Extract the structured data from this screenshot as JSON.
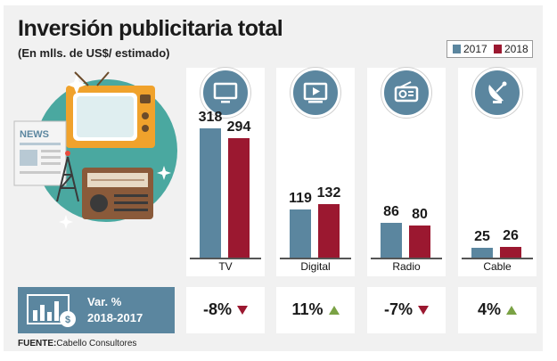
{
  "title": "Inversión publicitaria total",
  "subtitle": "(En mlls. de US$/ estimado)",
  "legend": [
    {
      "label": "2017",
      "color": "#5b869f"
    },
    {
      "label": "2018",
      "color": "#9b1830"
    }
  ],
  "chart_data": {
    "type": "bar",
    "title": "Inversión publicitaria total",
    "subtitle": "(En mlls. de US$/ estimado)",
    "categories": [
      "TV",
      "Digital",
      "Radio",
      "Cable"
    ],
    "series": [
      {
        "name": "2017",
        "values": [
          318,
          119,
          86,
          25
        ],
        "labels": [
          "318",
          "119",
          "86",
          "25"
        ]
      },
      {
        "name": "2018",
        "values": [
          294,
          132,
          80,
          26
        ],
        "labels": [
          "294",
          "132",
          "80",
          "26"
        ]
      }
    ],
    "ylim": [
      0,
      330
    ],
    "legend_position": "top-right",
    "grid": false
  },
  "variation": {
    "label_line1": "Var. %",
    "label_line2": "2018-2017",
    "items": [
      {
        "value": "-8%",
        "direction": "down"
      },
      {
        "value": "11%",
        "direction": "up"
      },
      {
        "value": "-7%",
        "direction": "down"
      },
      {
        "value": "4%",
        "direction": "up"
      }
    ]
  },
  "source": {
    "label": "FUENTE:",
    "text": "Cabello Consultores"
  },
  "illustration_sign": "NEWS"
}
